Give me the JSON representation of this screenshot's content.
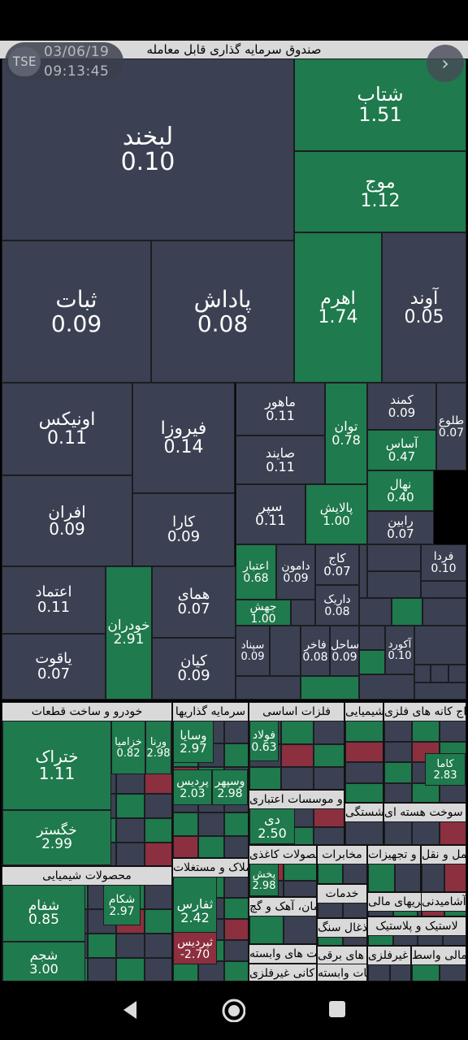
{
  "header": {
    "title": "صندوق سرمایه گذاری قابل معامله",
    "date": "03/06/19",
    "time": "09:13:45",
    "logo": "TSE"
  },
  "colors": {
    "neutral": "#3b4152",
    "positive": "#1f7a4d",
    "negative": "#8c2f3f",
    "header": "#d9d9d9"
  },
  "tiles": [
    {
      "name": "لبخند",
      "value": "0.10"
    },
    {
      "name": "شتاب",
      "value": "1.51"
    },
    {
      "name": "موج",
      "value": "1.12"
    },
    {
      "name": "ثبات",
      "value": "0.09"
    },
    {
      "name": "پاداش",
      "value": "0.08"
    },
    {
      "name": "اهرم",
      "value": "1.74"
    },
    {
      "name": "آوند",
      "value": "0.05"
    },
    {
      "name": "اونیکس",
      "value": "0.11"
    },
    {
      "name": "فیروزا",
      "value": "0.14"
    },
    {
      "name": "ماهور",
      "value": "0.11"
    },
    {
      "name": "صایند",
      "value": "0.11"
    },
    {
      "name": "توان",
      "value": "0.78"
    },
    {
      "name": "کمند",
      "value": "0.09"
    },
    {
      "name": "طلوع",
      "value": "0.07"
    },
    {
      "name": "آساس",
      "value": "0.47"
    },
    {
      "name": "افران",
      "value": "0.09"
    },
    {
      "name": "کارا",
      "value": "0.09"
    },
    {
      "name": "سپر",
      "value": "0.11"
    },
    {
      "name": "پالایش",
      "value": "1.00"
    },
    {
      "name": "نهال",
      "value": "0.40"
    },
    {
      "name": "رابین",
      "value": "0.07"
    },
    {
      "name": "اعتبار",
      "value": "0.68"
    },
    {
      "name": "دامون",
      "value": "0.09"
    },
    {
      "name": "کاج",
      "value": "0.07"
    },
    {
      "name": "فردا",
      "value": "0.10"
    },
    {
      "name": "اعتماد",
      "value": "0.11"
    },
    {
      "name": "همای",
      "value": "0.07"
    },
    {
      "name": "خودران",
      "value": "2.91"
    },
    {
      "name": "جهش",
      "value": "1.00"
    },
    {
      "name": "داریک",
      "value": "0.08"
    },
    {
      "name": "آکورد",
      "value": "0.10"
    },
    {
      "name": "یاقوت",
      "value": "0.07"
    },
    {
      "name": "کیان",
      "value": "0.09"
    },
    {
      "name": "سپناد",
      "value": "0.09"
    },
    {
      "name": "فاخر",
      "value": "0.08"
    },
    {
      "name": "ساحل",
      "value": "0.09"
    }
  ],
  "sectors": [
    {
      "title": "خودرو و ساخت قطعات",
      "tiles": [
        {
          "name": "ختراک",
          "value": "1.11"
        },
        {
          "name": "خزامیا",
          "value": "0.82"
        },
        {
          "name": "ورنا",
          "value": "2.98"
        },
        {
          "name": "خگستر",
          "value": "2.99"
        }
      ]
    },
    {
      "title": "سرمایه گذاریها",
      "tiles": [
        {
          "name": "وسایا",
          "value": "2.97"
        },
        {
          "name": "وسپهر",
          "value": "2.98"
        },
        {
          "name": "پردیس",
          "value": "2.03"
        }
      ]
    },
    {
      "title": "فلزات اساسی",
      "tiles": [
        {
          "name": "فولاد",
          "value": "0.63"
        }
      ]
    },
    {
      "title": "بانکها و موسسات اعتباری",
      "tiles": [
        {
          "name": "دی",
          "value": "2.50"
        }
      ]
    },
    {
      "title": "شیمیایی",
      "tiles": []
    },
    {
      "title": "محصولات شیمیایی",
      "tiles": [
        {
          "name": "شفام",
          "value": "0.85"
        },
        {
          "name": "شکام",
          "value": "2.97"
        },
        {
          "name": "شجم",
          "value": "3.00"
        }
      ]
    },
    {
      "title": "انبوه سازی، املاک و مستغلات",
      "tiles": [
        {
          "name": "ثفارس",
          "value": "2.42"
        },
        {
          "name": "ثپردیس",
          "value": "-2.70"
        }
      ]
    },
    {
      "title": "محصولات کاغذی",
      "tiles": [
        {
          "name": "پخش",
          "value": "2.98"
        }
      ]
    },
    {
      "title": "مخابرات",
      "tiles": []
    },
    {
      "title": "سیمان، آهک و گچ",
      "tiles": []
    },
    {
      "title": "خدمات",
      "tiles": []
    },
    {
      "title": "استخراج کانه های فلزی",
      "tiles": [
        {
          "name": "کاما",
          "value": "2.83"
        }
      ]
    },
    {
      "title": "فرآورده های نفتی، کک و سوخت هسته ای",
      "tiles": []
    },
    {
      "title": "ماشین آلات و تجهیزات",
      "tiles": []
    },
    {
      "title": "حمل و نقل",
      "tiles": []
    },
    {
      "title": "سایر واسطه گریهای مالی",
      "tiles": []
    },
    {
      "title": "محصولات غذایی و آشامیدنی",
      "tiles": []
    },
    {
      "title": "لاستیک و پلاستیک",
      "tiles": []
    },
    {
      "title": "استخراج ذغال سنگ",
      "tiles": []
    },
    {
      "title": "رایانه و فعالیت های وابسته",
      "tiles": []
    },
    {
      "title": "دستگاه های برقی",
      "tiles": []
    },
    {
      "title": "کانی های غیرفلزی",
      "tiles": []
    },
    {
      "title": "فعالیتهای کمکی به نهادهای مالی واسط",
      "tiles": []
    },
    {
      "title": "بیمه و صندوق بازنشستگی",
      "tiles": []
    },
    {
      "title": "محصولات کانی غیرفلزی",
      "tiles": []
    },
    {
      "title": "زراعت و خدمات وابسته",
      "tiles": []
    }
  ],
  "nav": {
    "back": "back-icon",
    "home": "home-icon",
    "recents": "recents-icon"
  }
}
